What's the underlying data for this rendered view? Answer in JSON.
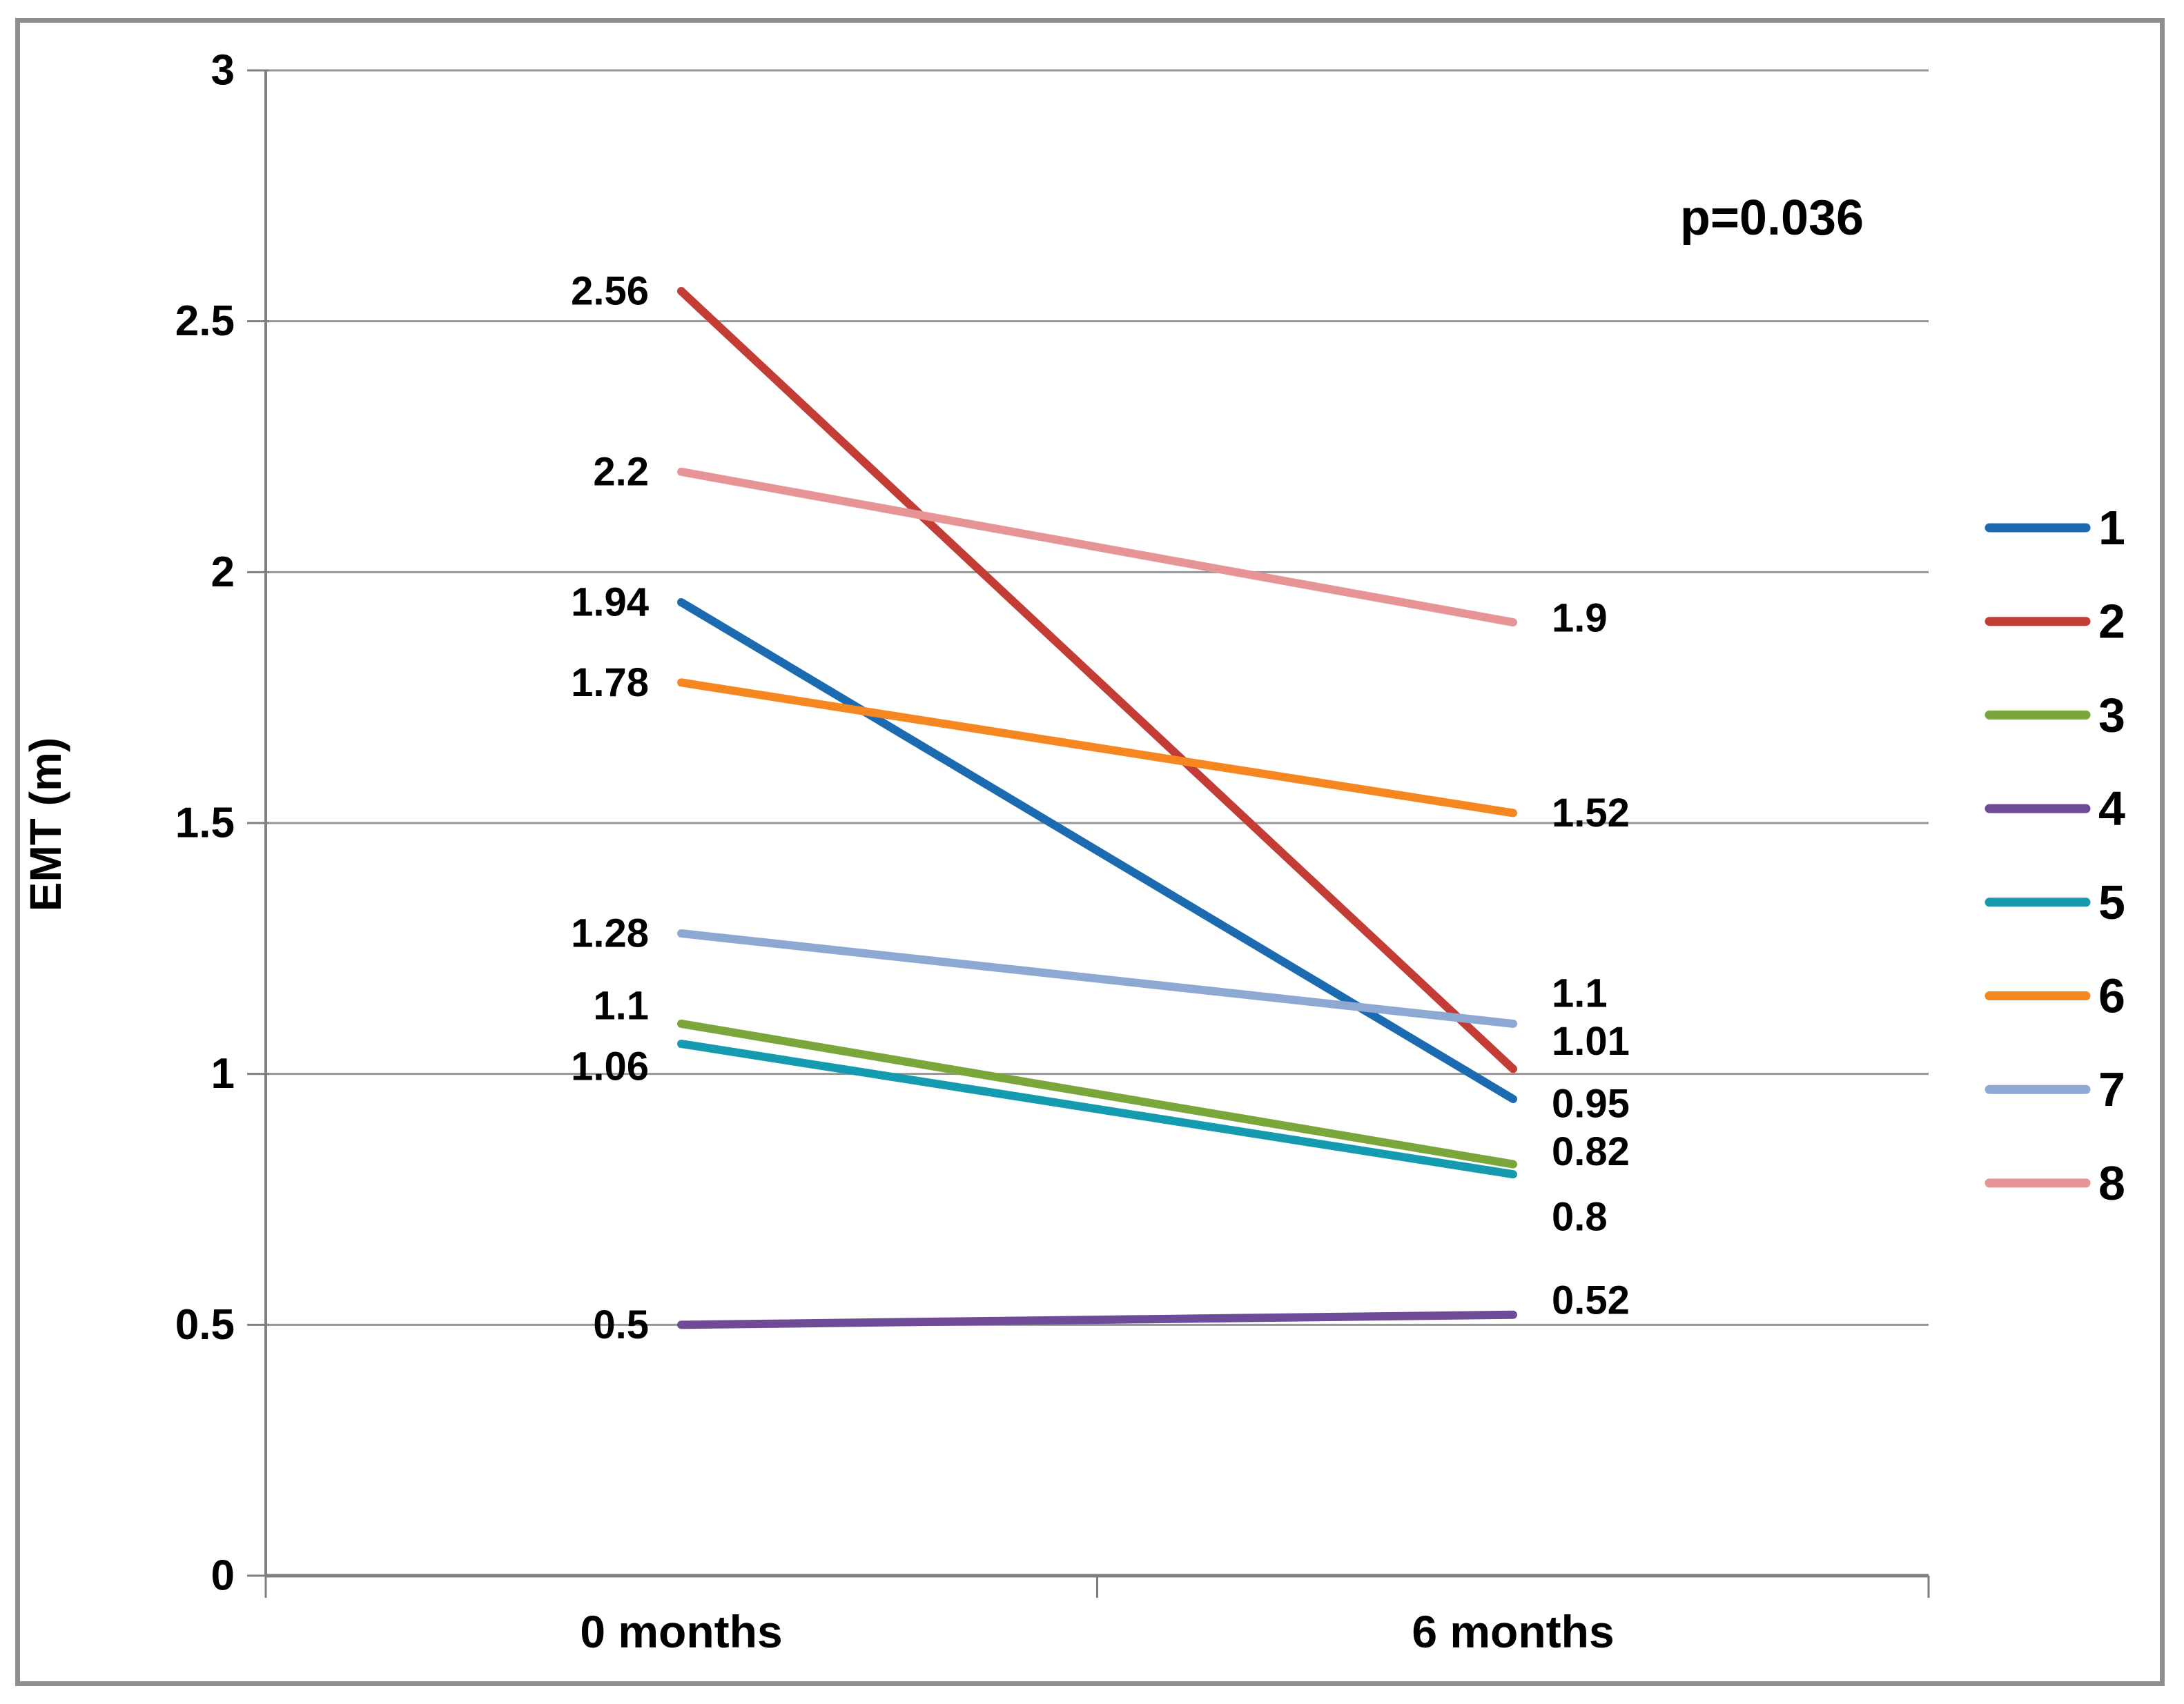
{
  "annotation": {
    "p_value": "p=0.036"
  },
  "y_axis": {
    "title": "EMT (m)",
    "tick_labels": [
      "3",
      "2.5",
      "2",
      "1.5",
      "1",
      "0.5",
      "0"
    ],
    "tick_values": [
      3,
      2.5,
      2,
      1.5,
      1,
      0.5,
      0
    ]
  },
  "x_axis": {
    "categories": [
      "0 months",
      "6 months"
    ]
  },
  "legend": {
    "position": "right",
    "items": [
      "1",
      "2",
      "3",
      "4",
      "5",
      "6",
      "7",
      "8"
    ]
  },
  "chart_data": {
    "type": "line",
    "x": [
      "0 months",
      "6 months"
    ],
    "series": [
      {
        "name": "1",
        "color": "#1C6BB0",
        "values": [
          1.94,
          0.95
        ],
        "labels": [
          "1.94",
          "0.95"
        ]
      },
      {
        "name": "2",
        "color": "#C33D36",
        "values": [
          2.56,
          1.01
        ],
        "labels": [
          "2.56",
          "1.01"
        ]
      },
      {
        "name": "3",
        "color": "#7AA63C",
        "values": [
          1.1,
          0.82
        ],
        "labels": [
          "1.1",
          "0.82"
        ]
      },
      {
        "name": "4",
        "color": "#6E4B96",
        "values": [
          0.5,
          0.52
        ],
        "labels": [
          "0.5",
          "0.52"
        ]
      },
      {
        "name": "5",
        "color": "#149BAF",
        "values": [
          1.06,
          0.8
        ],
        "labels": [
          "1.06",
          "0.8"
        ]
      },
      {
        "name": "6",
        "color": "#F58620",
        "values": [
          1.78,
          1.52
        ],
        "labels": [
          "1.78",
          "1.52"
        ]
      },
      {
        "name": "7",
        "color": "#8EA8D4",
        "values": [
          1.28,
          1.1
        ],
        "labels": [
          "1.28",
          "1.1"
        ]
      },
      {
        "name": "8",
        "color": "#E69496",
        "values": [
          2.2,
          1.9
        ],
        "labels": [
          "2.2",
          "1.9"
        ]
      }
    ],
    "title": "",
    "xlabel": "",
    "ylabel": "EMT (m)",
    "ylim": [
      0,
      3
    ],
    "y_step": 0.5,
    "grid": true,
    "legend_position": "right",
    "colors": {
      "gridline": "#969696",
      "axis": "#7f7f7f",
      "frame": "#8f8f8f",
      "text": "#000000"
    }
  }
}
